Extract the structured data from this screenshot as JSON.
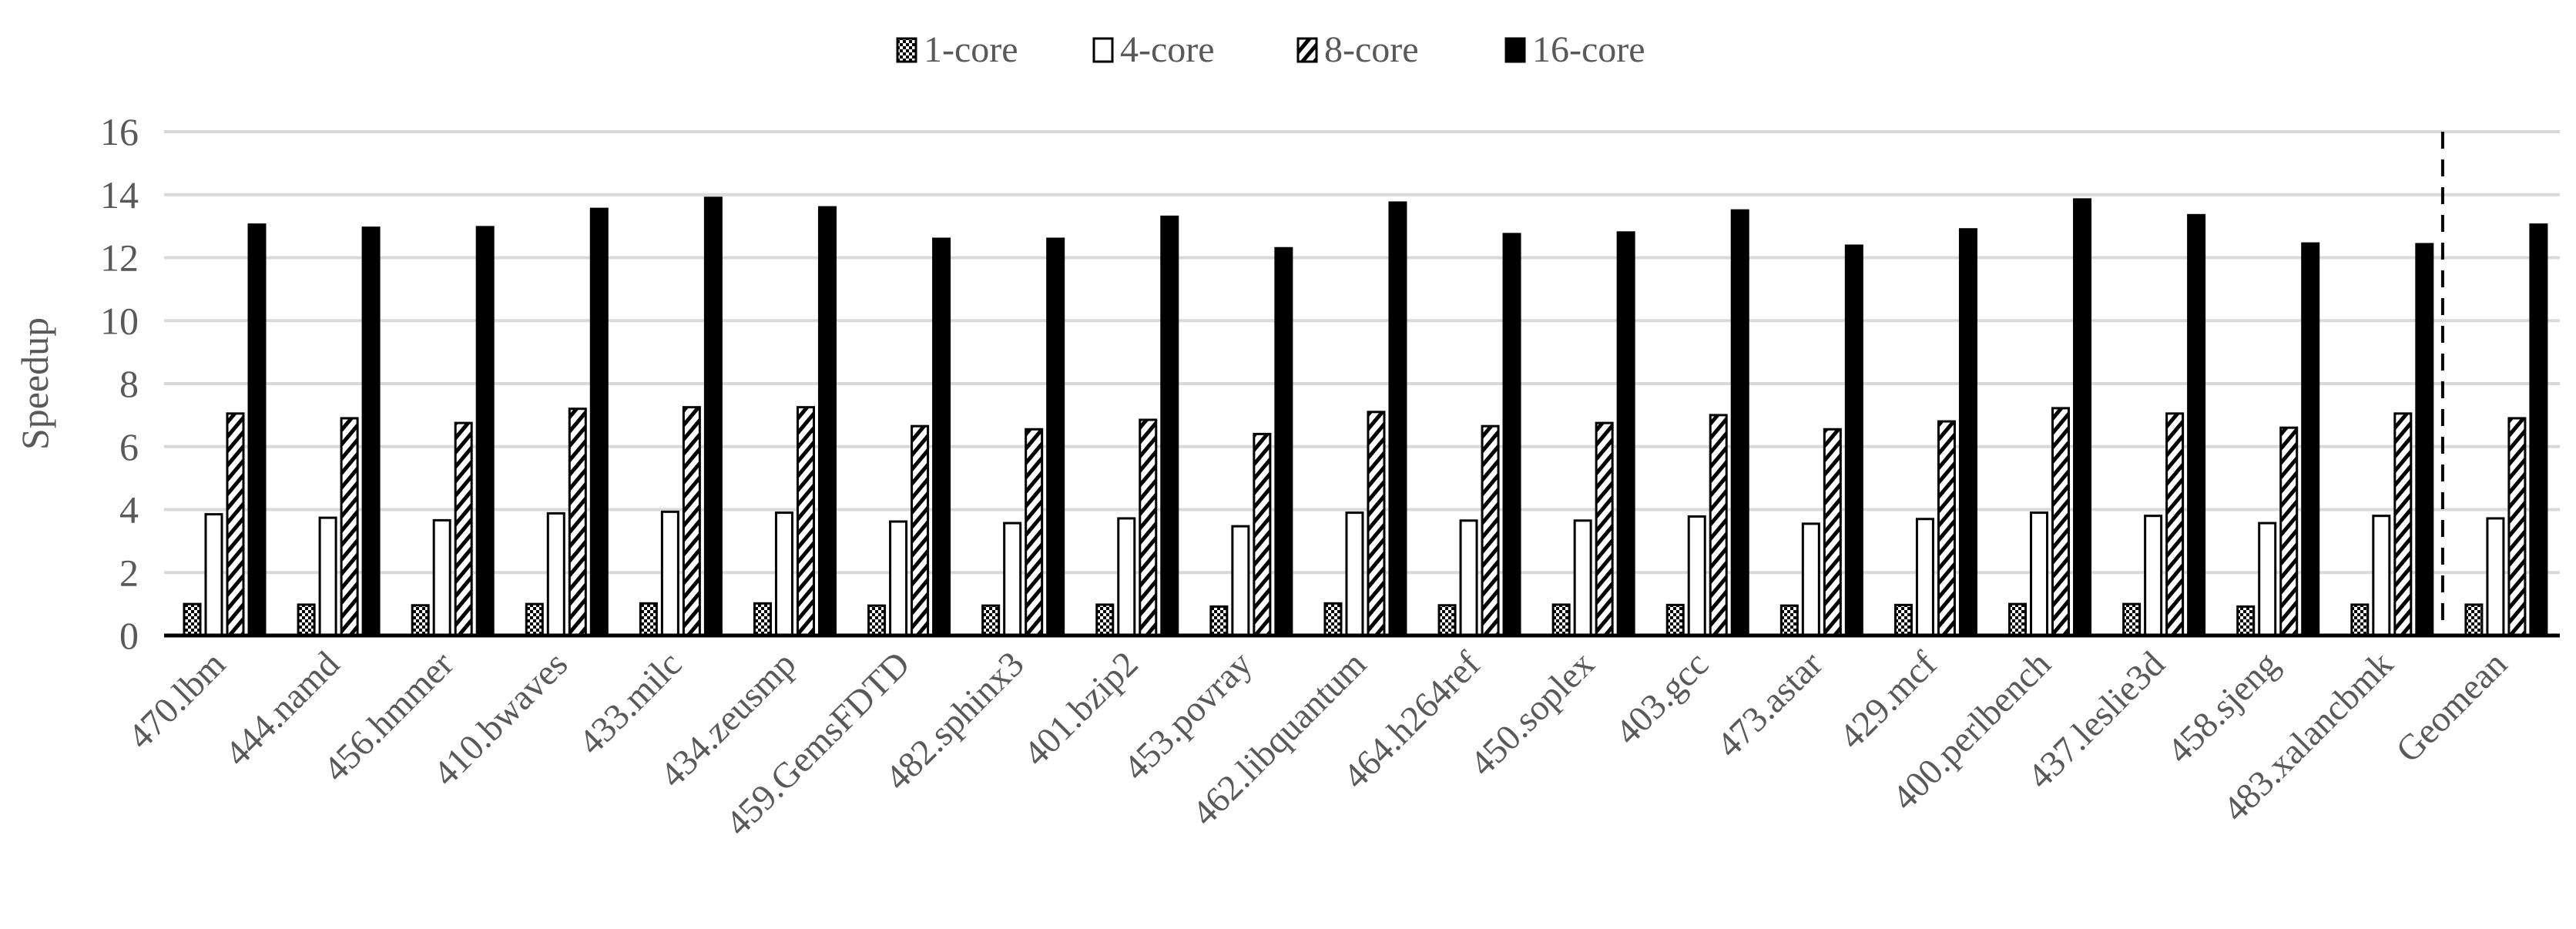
{
  "chart_data": {
    "type": "bar",
    "title": "",
    "xlabel": "",
    "ylabel": "Speedup",
    "ylim": [
      0,
      16
    ],
    "yticks": [
      0,
      2,
      4,
      6,
      8,
      10,
      12,
      14,
      16
    ],
    "grid": true,
    "legend_position": "top",
    "categories": [
      "470.lbm",
      "444.namd",
      "456.hmmer",
      "410.bwaves",
      "433.milc",
      "434.zeusmp",
      "459.GemsFDTD",
      "482.sphinx3",
      "401.bzip2",
      "453.povray",
      "462.libquantum",
      "464.h264ref",
      "450.soplex",
      "403.gcc",
      "473.astar",
      "429.mcf",
      "400.perlbench",
      "437.leslie3d",
      "458.sjeng",
      "483.xalancbmk",
      "Geomean"
    ],
    "separator_before": "Geomean",
    "series": [
      {
        "name": "1-core",
        "pattern": "checkered",
        "color": "#000000",
        "values": [
          1.0,
          0.98,
          0.96,
          1.0,
          1.02,
          1.02,
          0.95,
          0.95,
          0.98,
          0.92,
          1.02,
          0.96,
          0.98,
          0.97,
          0.95,
          0.97,
          1.0,
          1.0,
          0.92,
          0.98,
          0.98
        ]
      },
      {
        "name": "4-core",
        "pattern": "hollow",
        "color": "#ffffff",
        "values": [
          3.85,
          3.74,
          3.66,
          3.88,
          3.93,
          3.9,
          3.62,
          3.57,
          3.72,
          3.47,
          3.9,
          3.65,
          3.65,
          3.78,
          3.55,
          3.7,
          3.9,
          3.8,
          3.57,
          3.8,
          3.72
        ]
      },
      {
        "name": "8-core",
        "pattern": "hatched",
        "color": "#000000",
        "values": [
          7.05,
          6.9,
          6.75,
          7.2,
          7.25,
          7.25,
          6.65,
          6.55,
          6.85,
          6.4,
          7.1,
          6.65,
          6.75,
          7.0,
          6.55,
          6.8,
          7.22,
          7.05,
          6.6,
          7.05,
          6.9
        ]
      },
      {
        "name": "16-core",
        "pattern": "solid",
        "color": "#000000",
        "values": [
          13.05,
          12.95,
          12.97,
          13.55,
          13.9,
          13.6,
          12.6,
          12.6,
          13.3,
          12.3,
          13.75,
          12.75,
          12.8,
          13.5,
          12.38,
          12.9,
          13.85,
          13.35,
          12.45,
          12.43,
          13.05
        ]
      }
    ]
  }
}
